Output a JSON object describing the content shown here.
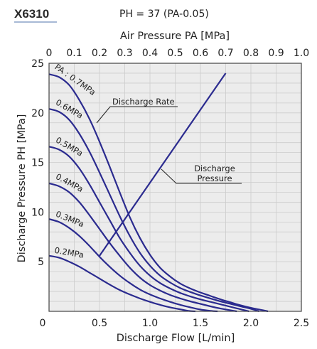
{
  "header": {
    "model": "X6310",
    "equation": "PH = 37 (PA-0.05)"
  },
  "chart_data": {
    "type": "line",
    "xlabel": "Discharge Flow [L/min]",
    "ylabel": "Discharge Pressure PH [MPa]",
    "x2label": "Air Pressure  PA [MPa]",
    "xlim": [
      0,
      2.5
    ],
    "ylim": [
      0,
      25
    ],
    "x2lim": [
      0,
      1.0
    ],
    "grid": true,
    "x_ticks": [
      {
        "v": 0,
        "label": "0"
      },
      {
        "v": 0.5,
        "label": "0.5"
      },
      {
        "v": 1.0,
        "label": "1.0"
      },
      {
        "v": 1.5,
        "label": "1.5"
      },
      {
        "v": 2.0,
        "label": "2.0"
      },
      {
        "v": 2.5,
        "label": "2.5"
      }
    ],
    "y_ticks": [
      {
        "v": 0,
        "label": "0"
      },
      {
        "v": 5,
        "label": "5"
      },
      {
        "v": 10,
        "label": "10"
      },
      {
        "v": 15,
        "label": "15"
      },
      {
        "v": 20,
        "label": "20"
      },
      {
        "v": 25,
        "label": "25"
      }
    ],
    "x2_ticks": [
      {
        "v": 0,
        "label": "0"
      },
      {
        "v": 0.1,
        "label": "0.1"
      },
      {
        "v": 0.2,
        "label": "0.2"
      },
      {
        "v": 0.3,
        "label": "0.3"
      },
      {
        "v": 0.4,
        "label": "0.4"
      },
      {
        "v": 0.5,
        "label": "0.5"
      },
      {
        "v": 0.6,
        "label": "0.6"
      },
      {
        "v": 0.7,
        "label": "0.7"
      },
      {
        "v": 0.8,
        "label": "0.8"
      },
      {
        "v": 0.9,
        "label": "0.9"
      },
      {
        "v": 1.0,
        "label": "1.0"
      }
    ],
    "series": [
      {
        "name": "PA : 0.7MPa",
        "color": "#2b2b8f",
        "points": [
          [
            0,
            23.9
          ],
          [
            0.1,
            23.6
          ],
          [
            0.2,
            22.8
          ],
          [
            0.3,
            21.3
          ],
          [
            0.4,
            19.4
          ],
          [
            0.5,
            17.1
          ],
          [
            0.6,
            14.6
          ],
          [
            0.7,
            12.0
          ],
          [
            0.8,
            9.5
          ],
          [
            0.9,
            7.4
          ],
          [
            1.0,
            5.7
          ],
          [
            1.1,
            4.4
          ],
          [
            1.2,
            3.5
          ],
          [
            1.3,
            2.8
          ],
          [
            1.4,
            2.3
          ],
          [
            1.5,
            1.9
          ],
          [
            1.6,
            1.55
          ],
          [
            1.7,
            1.2
          ],
          [
            1.8,
            0.9
          ],
          [
            1.9,
            0.6
          ],
          [
            2.0,
            0.35
          ],
          [
            2.1,
            0.15
          ],
          [
            2.17,
            0
          ]
        ]
      },
      {
        "name": "0.6MPa",
        "color": "#2b2b8f",
        "points": [
          [
            0,
            20.4
          ],
          [
            0.1,
            20.1
          ],
          [
            0.2,
            19.3
          ],
          [
            0.3,
            17.9
          ],
          [
            0.4,
            16.1
          ],
          [
            0.5,
            14.0
          ],
          [
            0.6,
            11.8
          ],
          [
            0.7,
            9.6
          ],
          [
            0.8,
            7.6
          ],
          [
            0.9,
            5.9
          ],
          [
            1.0,
            4.6
          ],
          [
            1.1,
            3.6
          ],
          [
            1.2,
            2.9
          ],
          [
            1.3,
            2.35
          ],
          [
            1.4,
            1.95
          ],
          [
            1.5,
            1.6
          ],
          [
            1.6,
            1.3
          ],
          [
            1.7,
            1.0
          ],
          [
            1.8,
            0.75
          ],
          [
            1.9,
            0.5
          ],
          [
            2.0,
            0.25
          ],
          [
            2.08,
            0
          ]
        ]
      },
      {
        "name": "0.5MPa",
        "color": "#2b2b8f",
        "points": [
          [
            0,
            16.6
          ],
          [
            0.1,
            16.3
          ],
          [
            0.2,
            15.6
          ],
          [
            0.3,
            14.4
          ],
          [
            0.4,
            12.8
          ],
          [
            0.5,
            11.0
          ],
          [
            0.6,
            9.2
          ],
          [
            0.7,
            7.4
          ],
          [
            0.8,
            5.9
          ],
          [
            0.9,
            4.6
          ],
          [
            1.0,
            3.6
          ],
          [
            1.1,
            2.85
          ],
          [
            1.2,
            2.3
          ],
          [
            1.3,
            1.85
          ],
          [
            1.4,
            1.5
          ],
          [
            1.5,
            1.2
          ],
          [
            1.6,
            0.95
          ],
          [
            1.7,
            0.7
          ],
          [
            1.8,
            0.45
          ],
          [
            1.9,
            0.2
          ],
          [
            1.98,
            0
          ]
        ]
      },
      {
        "name": "0.4MPa",
        "color": "#2b2b8f",
        "points": [
          [
            0,
            12.9
          ],
          [
            0.1,
            12.6
          ],
          [
            0.2,
            12.0
          ],
          [
            0.3,
            11.0
          ],
          [
            0.4,
            9.7
          ],
          [
            0.5,
            8.3
          ],
          [
            0.6,
            6.9
          ],
          [
            0.7,
            5.6
          ],
          [
            0.8,
            4.4
          ],
          [
            0.9,
            3.4
          ],
          [
            1.0,
            2.65
          ],
          [
            1.1,
            2.1
          ],
          [
            1.2,
            1.65
          ],
          [
            1.3,
            1.3
          ],
          [
            1.4,
            1.0
          ],
          [
            1.5,
            0.75
          ],
          [
            1.6,
            0.5
          ],
          [
            1.7,
            0.28
          ],
          [
            1.8,
            0.1
          ],
          [
            1.86,
            0
          ]
        ]
      },
      {
        "name": "0.3MPa",
        "color": "#2b2b8f",
        "points": [
          [
            0,
            9.3
          ],
          [
            0.1,
            9.0
          ],
          [
            0.2,
            8.4
          ],
          [
            0.3,
            7.6
          ],
          [
            0.4,
            6.6
          ],
          [
            0.5,
            5.5
          ],
          [
            0.6,
            4.5
          ],
          [
            0.7,
            3.6
          ],
          [
            0.8,
            2.85
          ],
          [
            0.9,
            2.2
          ],
          [
            1.0,
            1.7
          ],
          [
            1.1,
            1.3
          ],
          [
            1.2,
            0.95
          ],
          [
            1.3,
            0.65
          ],
          [
            1.4,
            0.4
          ],
          [
            1.5,
            0.18
          ],
          [
            1.6,
            0.05
          ],
          [
            1.67,
            0
          ]
        ]
      },
      {
        "name": "0.2MPa",
        "color": "#2b2b8f",
        "points": [
          [
            0,
            5.6
          ],
          [
            0.1,
            5.4
          ],
          [
            0.2,
            5.0
          ],
          [
            0.3,
            4.5
          ],
          [
            0.4,
            3.9
          ],
          [
            0.5,
            3.3
          ],
          [
            0.6,
            2.7
          ],
          [
            0.7,
            2.15
          ],
          [
            0.8,
            1.7
          ],
          [
            0.9,
            1.3
          ],
          [
            1.0,
            0.95
          ],
          [
            1.1,
            0.65
          ],
          [
            1.2,
            0.4
          ],
          [
            1.3,
            0.2
          ],
          [
            1.38,
            0.05
          ],
          [
            1.45,
            0
          ]
        ]
      }
    ],
    "discharge_pressure_line": {
      "name": "Discharge Pressure",
      "x2_range": [
        0.2,
        0.7
      ],
      "y_range": [
        5.6,
        24.0
      ]
    },
    "annotations": [
      {
        "text": "Discharge Rate"
      },
      {
        "text": "Discharge"
      },
      {
        "text": "Pressure"
      }
    ],
    "colors": {
      "curve": "#2b2b8f",
      "grid": "#cccccc",
      "plot_bg": "#ececec",
      "frame": "#444444"
    }
  }
}
